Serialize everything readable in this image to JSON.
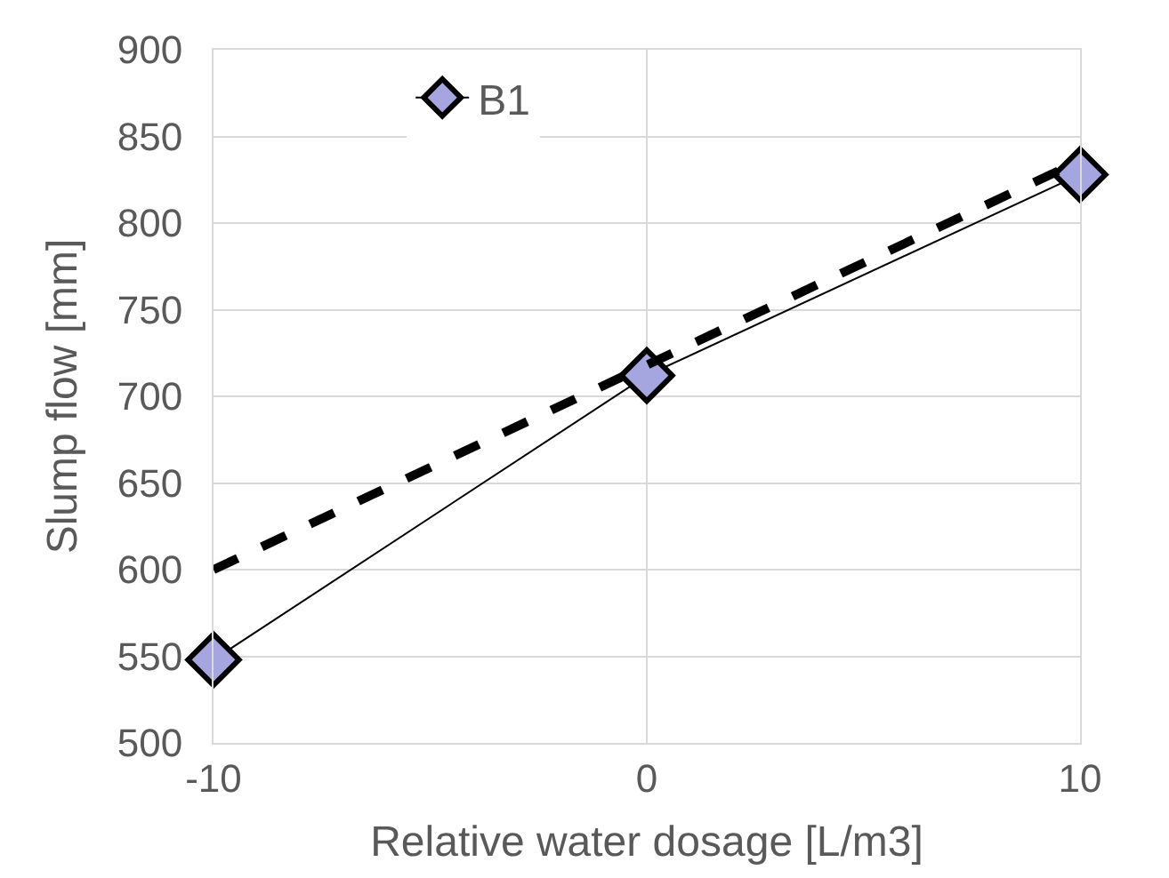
{
  "chart_data": {
    "type": "line",
    "xlabel": "Relative water dosage [L/m3]",
    "ylabel": "Slump flow [mm]",
    "x": [
      -10,
      0,
      10
    ],
    "series": [
      {
        "name": "B1",
        "color": "#000000",
        "values": [
          548,
          712,
          828
        ],
        "marker": "diamond",
        "line_style": "solid"
      },
      {
        "color": "#000000",
        "values": [
          600,
          718,
          836
        ],
        "marker": "none",
        "line_style": "dashed"
      }
    ],
    "xlim": [
      -10,
      10
    ],
    "xticks": [
      -10,
      0,
      10
    ],
    "ylim": [
      500,
      900
    ],
    "yticks": [
      500,
      550,
      600,
      650,
      700,
      750,
      800,
      850,
      900
    ],
    "grid": true,
    "legend": "top"
  }
}
